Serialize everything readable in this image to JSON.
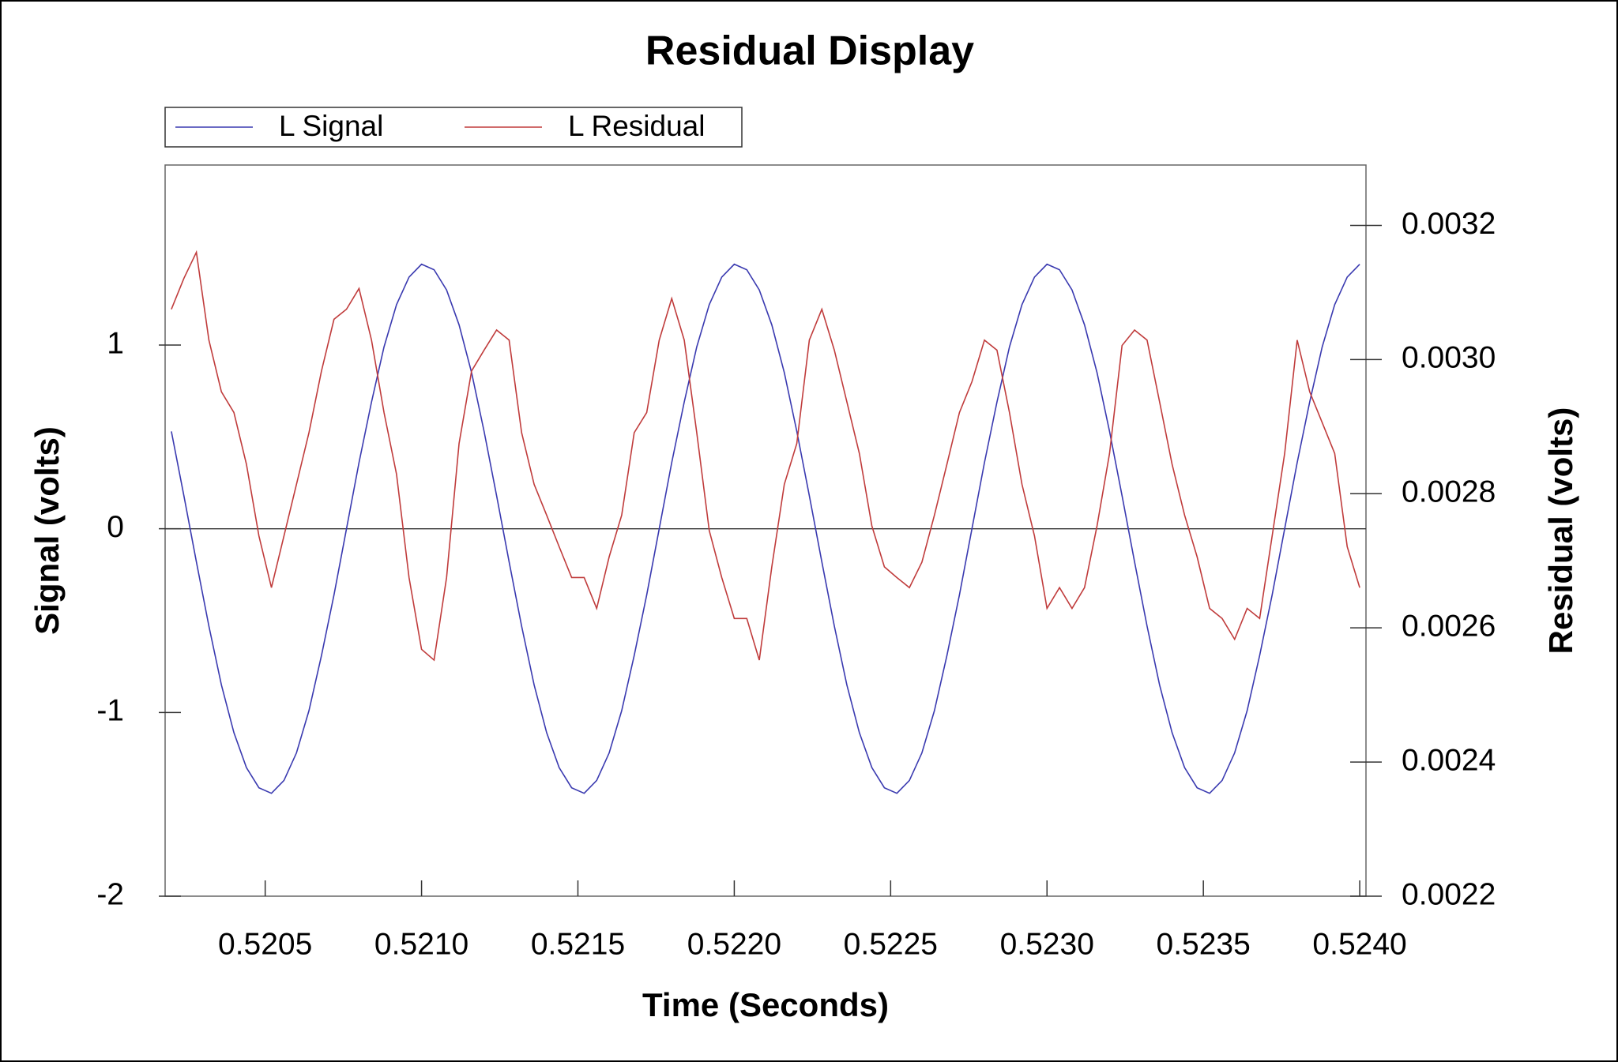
{
  "chart_data": {
    "type": "line",
    "title": "Residual Display",
    "x_label": "Time (Seconds)",
    "y_label": "Signal (volts)",
    "y2_label": "Residual (volts)",
    "legend": "top-left",
    "grid": false,
    "xlim": [
      0.52018,
      0.52402
    ],
    "xticks": [
      0.5205,
      {
        "value": 0.521,
        "label": "0.5210"
      },
      0.5215,
      {
        "value": 0.522,
        "label": "0.5220"
      },
      0.5225,
      {
        "value": 0.523,
        "label": "0.5230"
      },
      0.5235,
      {
        "value": 0.524,
        "label": "0.5240"
      }
    ],
    "ylim": [
      -2,
      1.98
    ],
    "yticks": [
      -2,
      -1,
      0,
      1
    ],
    "y2lim": [
      0.0022,
      0.00329
    ],
    "y2ticks": [
      0.0022,
      0.0024,
      0.0026,
      0.0028,
      {
        "value": 0.003,
        "label": "0.0030"
      },
      0.0032
    ],
    "x": [
      0.5202,
      0.52024,
      0.52028,
      0.52032,
      0.52036,
      0.5204,
      0.52044,
      0.52048,
      0.52052,
      0.52056,
      0.5206,
      0.52064,
      0.52068,
      0.52072,
      0.52076,
      0.5208,
      0.52084,
      0.52088,
      0.52092,
      0.52096,
      0.521,
      0.52104,
      0.52108,
      0.52112,
      0.52116,
      0.5212,
      0.52124,
      0.52128,
      0.52132,
      0.52136,
      0.5214,
      0.52144,
      0.52148,
      0.52152,
      0.52156,
      0.5216,
      0.52164,
      0.52168,
      0.52172,
      0.52176,
      0.5218,
      0.52184,
      0.52188,
      0.52192,
      0.52196,
      0.522,
      0.52204,
      0.52208,
      0.52212,
      0.52216,
      0.5222,
      0.52224,
      0.52228,
      0.52232,
      0.52236,
      0.5224,
      0.52244,
      0.52248,
      0.52252,
      0.52256,
      0.5226,
      0.52264,
      0.52268,
      0.52272,
      0.52276,
      0.5228,
      0.52284,
      0.52288,
      0.52292,
      0.52296,
      0.523,
      0.52304,
      0.52308,
      0.52312,
      0.52316,
      0.5232,
      0.52324,
      0.52328,
      0.52332,
      0.52336,
      0.5234,
      0.52344,
      0.52348,
      0.52352,
      0.52356,
      0.5236,
      0.52364,
      0.52368,
      0.52372,
      0.52376,
      0.5238,
      0.52384,
      0.52388,
      0.52392,
      0.52396,
      0.524
    ],
    "series": [
      {
        "name": "L Signal",
        "color": "#3a3ab0",
        "values": [
          0.53,
          0.18,
          -0.18,
          -0.53,
          -0.85,
          -1.11,
          -1.3,
          -1.41,
          -1.44,
          -1.37,
          -1.22,
          -0.99,
          -0.69,
          -0.36,
          0,
          0.36,
          0.69,
          0.99,
          1.22,
          1.37,
          1.44,
          1.41,
          1.3,
          1.11,
          0.85,
          0.53,
          0.18,
          -0.18,
          -0.53,
          -0.85,
          -1.11,
          -1.3,
          -1.41,
          -1.44,
          -1.37,
          -1.22,
          -0.99,
          -0.69,
          -0.36,
          0,
          0.36,
          0.69,
          0.99,
          1.22,
          1.37,
          1.44,
          1.41,
          1.3,
          1.11,
          0.85,
          0.53,
          0.18,
          -0.18,
          -0.53,
          -0.85,
          -1.11,
          -1.3,
          -1.41,
          -1.44,
          -1.37,
          -1.22,
          -0.99,
          -0.69,
          -0.36,
          0,
          0.36,
          0.69,
          0.99,
          1.22,
          1.37,
          1.44,
          1.41,
          1.3,
          1.11,
          0.85,
          0.53,
          0.18,
          -0.18,
          -0.53,
          -0.85,
          -1.11,
          -1.3,
          -1.41,
          -1.44,
          -1.37,
          -1.22,
          -0.99,
          -0.69,
          -0.36,
          0,
          0.36,
          0.69,
          0.99,
          1.22,
          1.37,
          1.44
        ]
      },
      {
        "name": "L Residual",
        "color": "#c03c3c",
        "axis": "y2",
        "values": [
          0.003075,
          0.003121,
          0.00316,
          0.003029,
          0.002952,
          0.002921,
          0.002844,
          0.002737,
          0.00266,
          0.002737,
          0.002814,
          0.002891,
          0.002983,
          0.00306,
          0.003075,
          0.003106,
          0.003029,
          0.002921,
          0.002829,
          0.002675,
          0.002568,
          0.002552,
          0.002675,
          0.002875,
          0.002983,
          0.003014,
          0.003044,
          0.003029,
          0.002891,
          0.002814,
          0.002768,
          0.002721,
          0.002675,
          0.002675,
          0.002629,
          0.002706,
          0.002768,
          0.002891,
          0.002921,
          0.003029,
          0.003091,
          0.003029,
          0.002891,
          0.002745,
          0.002675,
          0.002614,
          0.002614,
          0.002552,
          0.002691,
          0.002814,
          0.002875,
          0.003029,
          0.003075,
          0.003014,
          0.002937,
          0.00286,
          0.002752,
          0.002691,
          0.002675,
          0.00266,
          0.002698,
          0.002768,
          0.002844,
          0.002921,
          0.002967,
          0.003029,
          0.003014,
          0.002921,
          0.002814,
          0.002737,
          0.002629,
          0.00266,
          0.002629,
          0.00266,
          0.002752,
          0.00286,
          0.003021,
          0.003044,
          0.003029,
          0.002937,
          0.002844,
          0.002768,
          0.002706,
          0.002629,
          0.002614,
          0.002583,
          0.002629,
          0.002614,
          0.002737,
          0.00286,
          0.003029,
          0.002952,
          0.002906,
          0.00286,
          0.002721,
          0.00266
        ]
      }
    ]
  }
}
